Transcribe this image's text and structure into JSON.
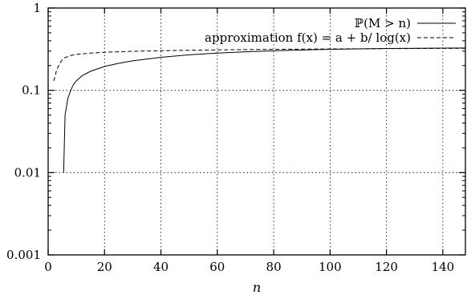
{
  "chart_data": {
    "type": "line",
    "xlabel": "n",
    "ylabel": "",
    "xlim": [
      0,
      148
    ],
    "ylim": [
      0.001,
      1
    ],
    "yscale": "log",
    "xticks": [
      0,
      20,
      40,
      60,
      80,
      100,
      120,
      140
    ],
    "yticks": [
      0.001,
      0.01,
      0.1,
      1
    ],
    "xtick_labels": [
      "0",
      "20",
      "40",
      "60",
      "80",
      "100",
      "120",
      "140"
    ],
    "ytick_labels": [
      "0.001",
      "0.01",
      "0.1",
      "1"
    ],
    "grid": true,
    "legend_position": "top-right",
    "series": [
      {
        "name": "ℙ(M > n)",
        "style": "solid",
        "x": [
          5.5,
          6,
          7,
          8,
          9,
          10,
          12,
          15,
          20,
          25,
          30,
          40,
          50,
          60,
          70,
          80,
          90,
          100,
          110,
          120,
          130,
          140,
          148
        ],
        "y": [
          0.01,
          0.05,
          0.08,
          0.1,
          0.118,
          0.13,
          0.15,
          0.17,
          0.195,
          0.213,
          0.228,
          0.252,
          0.27,
          0.283,
          0.294,
          0.302,
          0.309,
          0.315,
          0.319,
          0.322,
          0.324,
          0.326,
          0.327
        ]
      },
      {
        "name": "approximation f(x) = a + b/ log(x)",
        "style": "dashed",
        "x": [
          2,
          3,
          4,
          5,
          6,
          8,
          10,
          15,
          20,
          30,
          40,
          60,
          80,
          100,
          120,
          140,
          148
        ],
        "y": [
          0.13,
          0.175,
          0.21,
          0.235,
          0.25,
          0.265,
          0.273,
          0.283,
          0.29,
          0.298,
          0.303,
          0.31,
          0.315,
          0.318,
          0.321,
          0.323,
          0.324
        ]
      }
    ]
  }
}
